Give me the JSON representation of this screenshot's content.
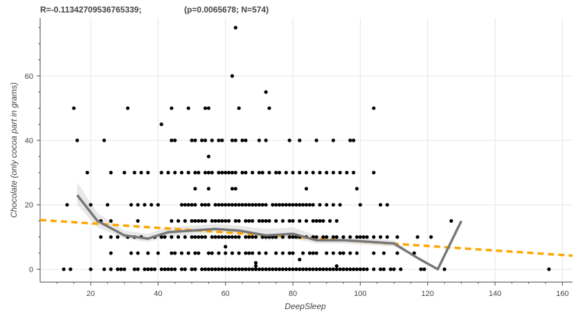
{
  "chart_data": {
    "type": "scatter",
    "title_left": "R=-0.11342709536765339;",
    "title_right": "(p=0.0065678; N=574)",
    "xlabel": "DeepSleep",
    "ylabel": "Chocolate (only cocoa part in grams)",
    "xlim": [
      5,
      163
    ],
    "ylim": [
      -4,
      78
    ],
    "xticks": [
      20,
      40,
      60,
      80,
      100,
      120,
      140,
      160
    ],
    "yticks": [
      0,
      20,
      40,
      60
    ],
    "grid": true,
    "colors": {
      "points": "#000000",
      "smooth": "#777777",
      "band": "#d9d9d9",
      "regression": "#ffa500"
    },
    "regression_line": {
      "x": [
        5,
        163
      ],
      "y": [
        15.3,
        4.2
      ]
    },
    "smooth_curve": {
      "x": [
        16,
        22,
        30,
        37,
        43,
        50,
        57,
        64,
        72,
        80,
        87,
        95,
        103,
        110,
        117,
        123,
        130
      ],
      "y": [
        23,
        15,
        10.5,
        9.5,
        11.5,
        12,
        12.5,
        12,
        10.5,
        11,
        9,
        9,
        8.5,
        8,
        3.5,
        0,
        15
      ],
      "lower": [
        20,
        13,
        9.5,
        8.5,
        10,
        10.8,
        11.5,
        11,
        9,
        9.5,
        8,
        8,
        7.5,
        7,
        3.5,
        0,
        15
      ],
      "upper": [
        27,
        17.5,
        12,
        11,
        13,
        13.5,
        14,
        13.5,
        12.5,
        13,
        10.5,
        10,
        9.5,
        9,
        3.5,
        0,
        15
      ]
    },
    "points": [
      [
        12,
        0
      ],
      [
        14,
        0
      ],
      [
        20,
        0
      ],
      [
        24,
        0
      ],
      [
        26,
        0
      ],
      [
        28,
        0
      ],
      [
        29,
        0
      ],
      [
        30,
        0
      ],
      [
        33,
        0
      ],
      [
        34,
        0
      ],
      [
        36,
        0
      ],
      [
        37,
        0
      ],
      [
        38,
        0
      ],
      [
        39,
        0
      ],
      [
        41,
        0
      ],
      [
        42,
        0
      ],
      [
        43,
        0
      ],
      [
        44,
        0
      ],
      [
        45,
        0
      ],
      [
        47,
        0
      ],
      [
        48,
        0
      ],
      [
        50,
        0
      ],
      [
        51,
        0
      ],
      [
        53,
        0
      ],
      [
        54,
        0
      ],
      [
        55,
        0
      ],
      [
        56,
        0
      ],
      [
        57,
        0
      ],
      [
        58,
        0
      ],
      [
        59,
        0
      ],
      [
        60,
        0
      ],
      [
        61,
        0
      ],
      [
        62,
        0
      ],
      [
        63,
        0
      ],
      [
        64,
        0
      ],
      [
        65,
        0
      ],
      [
        66,
        0
      ],
      [
        67,
        0
      ],
      [
        68,
        0
      ],
      [
        69,
        0
      ],
      [
        70,
        0
      ],
      [
        71,
        0
      ],
      [
        72,
        0
      ],
      [
        73,
        0
      ],
      [
        74,
        0
      ],
      [
        75,
        0
      ],
      [
        76,
        0
      ],
      [
        77,
        0
      ],
      [
        78,
        0
      ],
      [
        79,
        0
      ],
      [
        80,
        0
      ],
      [
        81,
        0
      ],
      [
        82,
        0
      ],
      [
        83,
        0
      ],
      [
        84,
        0
      ],
      [
        85,
        0
      ],
      [
        86,
        0
      ],
      [
        87,
        0
      ],
      [
        88,
        0
      ],
      [
        89,
        0
      ],
      [
        90,
        0
      ],
      [
        91,
        0
      ],
      [
        92,
        0
      ],
      [
        93,
        0
      ],
      [
        94,
        0
      ],
      [
        95,
        0
      ],
      [
        96,
        0
      ],
      [
        97,
        0
      ],
      [
        98,
        0
      ],
      [
        99,
        0
      ],
      [
        100,
        0
      ],
      [
        101,
        0
      ],
      [
        102,
        0
      ],
      [
        104,
        0
      ],
      [
        106,
        0
      ],
      [
        107,
        0
      ],
      [
        109,
        0
      ],
      [
        110,
        0
      ],
      [
        112,
        0
      ],
      [
        118,
        0
      ],
      [
        119,
        0
      ],
      [
        125,
        0
      ],
      [
        156,
        0
      ],
      [
        69,
        1
      ],
      [
        69,
        2
      ],
      [
        93,
        1
      ],
      [
        82,
        3
      ],
      [
        60,
        7
      ],
      [
        26,
        5
      ],
      [
        32,
        5
      ],
      [
        34,
        5
      ],
      [
        37,
        5
      ],
      [
        40,
        5
      ],
      [
        44,
        5
      ],
      [
        45,
        5
      ],
      [
        47,
        5
      ],
      [
        49,
        5
      ],
      [
        51,
        5
      ],
      [
        52,
        5
      ],
      [
        55,
        5
      ],
      [
        56,
        5
      ],
      [
        58,
        5
      ],
      [
        60,
        5
      ],
      [
        62,
        5
      ],
      [
        64,
        5
      ],
      [
        66,
        5
      ],
      [
        67,
        5
      ],
      [
        68,
        5
      ],
      [
        70,
        5
      ],
      [
        72,
        5
      ],
      [
        75,
        5
      ],
      [
        77,
        5
      ],
      [
        79,
        5
      ],
      [
        80,
        5
      ],
      [
        83,
        5
      ],
      [
        85,
        5
      ],
      [
        86,
        5
      ],
      [
        87,
        5
      ],
      [
        90,
        5
      ],
      [
        92,
        5
      ],
      [
        94,
        5
      ],
      [
        95,
        5
      ],
      [
        97,
        5
      ],
      [
        99,
        5
      ],
      [
        104,
        5
      ],
      [
        107,
        5
      ],
      [
        111,
        5
      ],
      [
        116,
        5
      ],
      [
        23,
        10
      ],
      [
        26,
        10
      ],
      [
        28,
        10
      ],
      [
        31,
        10
      ],
      [
        33,
        10
      ],
      [
        35,
        10
      ],
      [
        39,
        10
      ],
      [
        41,
        10
      ],
      [
        42,
        10
      ],
      [
        44,
        10
      ],
      [
        46,
        10
      ],
      [
        48,
        10
      ],
      [
        50,
        10
      ],
      [
        51,
        10
      ],
      [
        52,
        10
      ],
      [
        53,
        10
      ],
      [
        54,
        10
      ],
      [
        56,
        10
      ],
      [
        57,
        10
      ],
      [
        58,
        10
      ],
      [
        59,
        10
      ],
      [
        60,
        10
      ],
      [
        61,
        10
      ],
      [
        62,
        10
      ],
      [
        63,
        10
      ],
      [
        64,
        10
      ],
      [
        66,
        10
      ],
      [
        67,
        10
      ],
      [
        68,
        10
      ],
      [
        69,
        10
      ],
      [
        71,
        10
      ],
      [
        72,
        10
      ],
      [
        73,
        10
      ],
      [
        74,
        10
      ],
      [
        75,
        10
      ],
      [
        77,
        10
      ],
      [
        79,
        10
      ],
      [
        80,
        10
      ],
      [
        81,
        10
      ],
      [
        82,
        10
      ],
      [
        84,
        10
      ],
      [
        86,
        10
      ],
      [
        87,
        10
      ],
      [
        89,
        10
      ],
      [
        90,
        10
      ],
      [
        92,
        10
      ],
      [
        93,
        10
      ],
      [
        95,
        10
      ],
      [
        97,
        10
      ],
      [
        99,
        10
      ],
      [
        100,
        10
      ],
      [
        101,
        10
      ],
      [
        102,
        10
      ],
      [
        104,
        10
      ],
      [
        106,
        10
      ],
      [
        108,
        10
      ],
      [
        111,
        10
      ],
      [
        117,
        10
      ],
      [
        121,
        10
      ],
      [
        23,
        15
      ],
      [
        26,
        15
      ],
      [
        34,
        15
      ],
      [
        44,
        15
      ],
      [
        46,
        15
      ],
      [
        48,
        15
      ],
      [
        50,
        15
      ],
      [
        51,
        15
      ],
      [
        52,
        15
      ],
      [
        53,
        15
      ],
      [
        54,
        15
      ],
      [
        56,
        15
      ],
      [
        57,
        15
      ],
      [
        58,
        15
      ],
      [
        59,
        15
      ],
      [
        60,
        15
      ],
      [
        61,
        15
      ],
      [
        63,
        15
      ],
      [
        64,
        15
      ],
      [
        66,
        15
      ],
      [
        67,
        15
      ],
      [
        68,
        15
      ],
      [
        70,
        15
      ],
      [
        71,
        15
      ],
      [
        72,
        15
      ],
      [
        73,
        15
      ],
      [
        75,
        15
      ],
      [
        77,
        15
      ],
      [
        79,
        15
      ],
      [
        80,
        15
      ],
      [
        82,
        15
      ],
      [
        84,
        15
      ],
      [
        86,
        15
      ],
      [
        87,
        15
      ],
      [
        88,
        15
      ],
      [
        89,
        15
      ],
      [
        91,
        15
      ],
      [
        93,
        15
      ],
      [
        127,
        15
      ],
      [
        13,
        20
      ],
      [
        20,
        20
      ],
      [
        25,
        20
      ],
      [
        32,
        20
      ],
      [
        34,
        20
      ],
      [
        36,
        20
      ],
      [
        38,
        20
      ],
      [
        40,
        20
      ],
      [
        47,
        20
      ],
      [
        48,
        20
      ],
      [
        49,
        20
      ],
      [
        50,
        20
      ],
      [
        51,
        20
      ],
      [
        53,
        20
      ],
      [
        54,
        20
      ],
      [
        55,
        20
      ],
      [
        57,
        20
      ],
      [
        58,
        20
      ],
      [
        59,
        20
      ],
      [
        60,
        20
      ],
      [
        61,
        20
      ],
      [
        62,
        20
      ],
      [
        63,
        20
      ],
      [
        64,
        20
      ],
      [
        65,
        20
      ],
      [
        66,
        20
      ],
      [
        67,
        20
      ],
      [
        68,
        20
      ],
      [
        69,
        20
      ],
      [
        70,
        20
      ],
      [
        71,
        20
      ],
      [
        72,
        20
      ],
      [
        74,
        20
      ],
      [
        75,
        20
      ],
      [
        76,
        20
      ],
      [
        77,
        20
      ],
      [
        78,
        20
      ],
      [
        79,
        20
      ],
      [
        80,
        20
      ],
      [
        81,
        20
      ],
      [
        82,
        20
      ],
      [
        83,
        20
      ],
      [
        84,
        20
      ],
      [
        85,
        20
      ],
      [
        86,
        20
      ],
      [
        88,
        20
      ],
      [
        90,
        20
      ],
      [
        92,
        20
      ],
      [
        94,
        20
      ],
      [
        100,
        20
      ],
      [
        106,
        20
      ],
      [
        108,
        20
      ],
      [
        51,
        25
      ],
      [
        55,
        25
      ],
      [
        62,
        25
      ],
      [
        63,
        25
      ],
      [
        84,
        25
      ],
      [
        99,
        25
      ],
      [
        19,
        30
      ],
      [
        26,
        30
      ],
      [
        30,
        30
      ],
      [
        33,
        30
      ],
      [
        35,
        30
      ],
      [
        37,
        30
      ],
      [
        41,
        30
      ],
      [
        43,
        30
      ],
      [
        45,
        30
      ],
      [
        47,
        30
      ],
      [
        49,
        30
      ],
      [
        51,
        30
      ],
      [
        52,
        30
      ],
      [
        54,
        30
      ],
      [
        55,
        30
      ],
      [
        56,
        30
      ],
      [
        58,
        30
      ],
      [
        59,
        30
      ],
      [
        60,
        30
      ],
      [
        61,
        30
      ],
      [
        62,
        30
      ],
      [
        63,
        30
      ],
      [
        65,
        30
      ],
      [
        66,
        30
      ],
      [
        68,
        30
      ],
      [
        70,
        30
      ],
      [
        71,
        30
      ],
      [
        73,
        30
      ],
      [
        75,
        30
      ],
      [
        76,
        30
      ],
      [
        78,
        30
      ],
      [
        80,
        30
      ],
      [
        82,
        30
      ],
      [
        84,
        30
      ],
      [
        86,
        30
      ],
      [
        88,
        30
      ],
      [
        90,
        30
      ],
      [
        92,
        30
      ],
      [
        94,
        30
      ],
      [
        96,
        30
      ],
      [
        98,
        30
      ],
      [
        104,
        30
      ],
      [
        55,
        35
      ],
      [
        16,
        40
      ],
      [
        24,
        40
      ],
      [
        44,
        40
      ],
      [
        45,
        40
      ],
      [
        50,
        40
      ],
      [
        51,
        40
      ],
      [
        53,
        40
      ],
      [
        54,
        40
      ],
      [
        56,
        40
      ],
      [
        58,
        40
      ],
      [
        59,
        40
      ],
      [
        62,
        40
      ],
      [
        63,
        40
      ],
      [
        65,
        40
      ],
      [
        66,
        40
      ],
      [
        70,
        40
      ],
      [
        72,
        40
      ],
      [
        79,
        40
      ],
      [
        82,
        40
      ],
      [
        87,
        40
      ],
      [
        92,
        40
      ],
      [
        97,
        40
      ],
      [
        98,
        40
      ],
      [
        41,
        45
      ],
      [
        15,
        50
      ],
      [
        31,
        50
      ],
      [
        44,
        50
      ],
      [
        49,
        50
      ],
      [
        54,
        50
      ],
      [
        55,
        50
      ],
      [
        64,
        50
      ],
      [
        73,
        50
      ],
      [
        104,
        50
      ],
      [
        72,
        55
      ],
      [
        62,
        60
      ],
      [
        63,
        75
      ]
    ]
  }
}
